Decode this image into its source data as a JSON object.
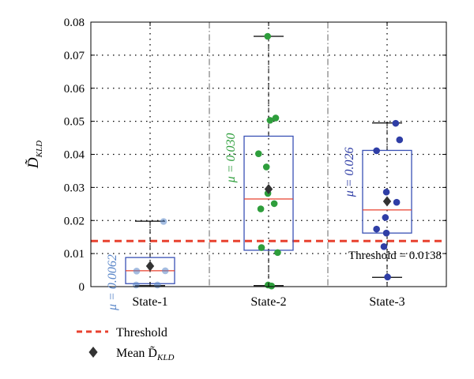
{
  "chart_data": {
    "type": "box-strip",
    "ylabel": "D̃KLD",
    "ylabel_main": "D̃",
    "ylabel_sub": "KLD",
    "ylim": [
      0,
      0.08
    ],
    "yticks": [
      "0",
      "0.01",
      "0.02",
      "0.03",
      "0.04",
      "0.05",
      "0.06",
      "0.07",
      "0.08"
    ],
    "grid": true,
    "categories": [
      "State-1",
      "State-2",
      "State-3"
    ],
    "groups": [
      {
        "name": "State-1",
        "color": "#5a86c8",
        "point_alpha": 0.55,
        "box": {
          "q1": 0.0009,
          "median": 0.0048,
          "q3": 0.0088,
          "whisker_low": 0.0003,
          "whisker_high": 0.0198
        },
        "mean": 0.0062,
        "mu_label": "μ = 0.0062",
        "points": [
          {
            "dx": 0.55,
            "y": 0.0197
          },
          {
            "dx": -0.55,
            "y": 0.0047
          },
          {
            "dx": 0.62,
            "y": 0.0048
          },
          {
            "dx": -0.57,
            "y": 0.0005
          },
          {
            "dx": 0.3,
            "y": 0.0005
          }
        ]
      },
      {
        "name": "State-2",
        "color": "#2e9e3c",
        "point_alpha": 1,
        "box": {
          "q1": 0.011,
          "median": 0.0265,
          "q3": 0.0455,
          "whisker_low": 0.0003,
          "whisker_high": 0.0757
        },
        "mean": 0.0295,
        "mu_label": "μ = 0.030",
        "points": [
          {
            "dx": -0.04,
            "y": 0.0757
          },
          {
            "dx": 0.29,
            "y": 0.051
          },
          {
            "dx": 0.06,
            "y": 0.0503
          },
          {
            "dx": -0.41,
            "y": 0.0402
          },
          {
            "dx": -0.09,
            "y": 0.0362
          },
          {
            "dx": -0.03,
            "y": 0.0282
          },
          {
            "dx": -0.32,
            "y": 0.0235
          },
          {
            "dx": 0.23,
            "y": 0.0251
          },
          {
            "dx": -0.29,
            "y": 0.0118
          },
          {
            "dx": 0.37,
            "y": 0.0103
          },
          {
            "dx": -0.02,
            "y": 0.0005
          },
          {
            "dx": 0.12,
            "y": 0.0002
          }
        ]
      },
      {
        "name": "State-3",
        "color": "#2f3ea6",
        "point_alpha": 1,
        "box": {
          "q1": 0.0162,
          "median": 0.0232,
          "q3": 0.0412,
          "whisker_low": 0.0028,
          "whisker_high": 0.0495
        },
        "mean": 0.0258,
        "mu_label": "μ = 0.026",
        "points": [
          {
            "dx": 0.35,
            "y": 0.0494
          },
          {
            "dx": 0.51,
            "y": 0.0444
          },
          {
            "dx": -0.43,
            "y": 0.0411
          },
          {
            "dx": -0.03,
            "y": 0.0286
          },
          {
            "dx": 0.39,
            "y": 0.0255
          },
          {
            "dx": -0.07,
            "y": 0.0209
          },
          {
            "dx": -0.43,
            "y": 0.0174
          },
          {
            "dx": -0.03,
            "y": 0.0162
          },
          {
            "dx": -0.13,
            "y": 0.0121
          },
          {
            "dx": 0.02,
            "y": 0.0029
          }
        ]
      }
    ],
    "threshold": {
      "value": 0.0138,
      "label": "Threshold = 0.0138",
      "color": "#e8412f"
    },
    "colors": {
      "box_edge": "#3a52b5",
      "median": "#e8412f",
      "mean_marker": "#333333",
      "whisker": "#000000"
    },
    "legend": {
      "position": "bottom-left",
      "items": [
        {
          "label": "Threshold",
          "marker": "dashed-line"
        },
        {
          "label_main": "Mean D̃",
          "label_sub": "KLD",
          "marker": "diamond"
        }
      ]
    }
  }
}
